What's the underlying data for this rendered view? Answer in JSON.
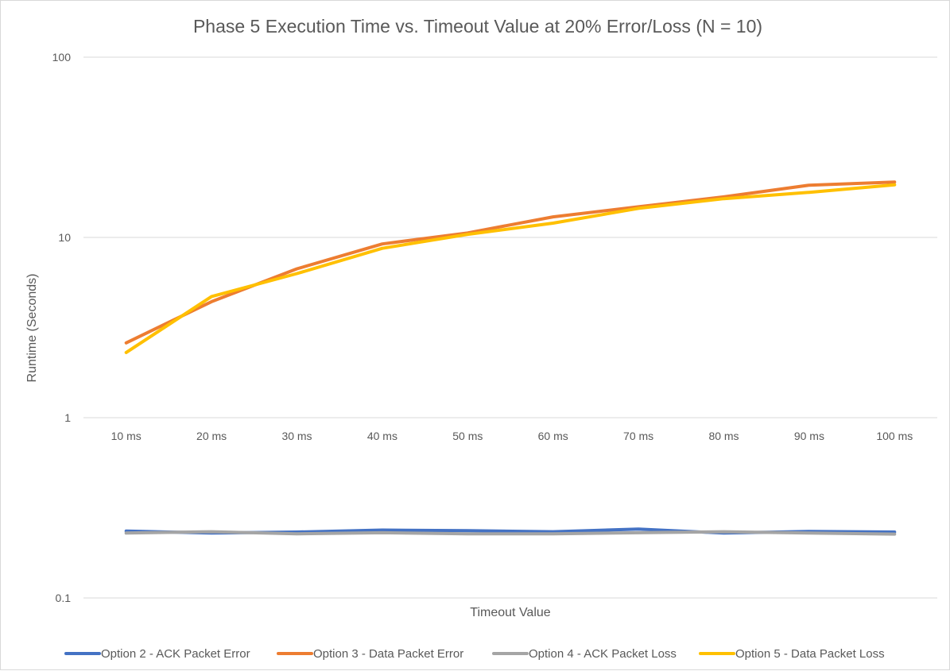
{
  "chart_data": {
    "type": "line",
    "title": "Phase 5 Execution Time vs. Timeout Value at 20% Error/Loss (N = 10)",
    "xlabel": "Timeout Value",
    "ylabel": "Runtime (Seconds)",
    "y_scale": "log",
    "ylim": [
      0.1,
      100
    ],
    "y_ticks": [
      {
        "value": 100,
        "label": "100"
      },
      {
        "value": 10,
        "label": "10"
      },
      {
        "value": 1,
        "label": "1"
      },
      {
        "value": 0.1,
        "label": "0.1"
      }
    ],
    "grid": true,
    "legend_position": "bottom",
    "categories": [
      "10 ms",
      "20 ms",
      "30 ms",
      "40 ms",
      "50 ms",
      "60 ms",
      "70 ms",
      "80 ms",
      "90 ms",
      "100 ms"
    ],
    "series": [
      {
        "name": "Option 2 - ACK Packet Error",
        "color": "#4472c4",
        "values": [
          0.235,
          0.229,
          0.232,
          0.238,
          0.236,
          0.233,
          0.241,
          0.229,
          0.234,
          0.232
        ]
      },
      {
        "name": "Option 3 - Data Packet Error",
        "color": "#ed7d31",
        "values": [
          2.6,
          4.4,
          6.7,
          9.2,
          10.6,
          13.0,
          14.8,
          16.8,
          19.5,
          20.3
        ]
      },
      {
        "name": "Option 4 - ACK Packet Loss",
        "color": "#a5a5a5",
        "values": [
          0.229,
          0.233,
          0.227,
          0.23,
          0.227,
          0.227,
          0.23,
          0.233,
          0.229,
          0.226
        ]
      },
      {
        "name": "Option 5 - Data Packet Loss",
        "color": "#ffc000",
        "values": [
          2.3,
          4.7,
          6.3,
          8.7,
          10.4,
          12.0,
          14.5,
          16.4,
          17.8,
          19.6
        ]
      }
    ]
  }
}
